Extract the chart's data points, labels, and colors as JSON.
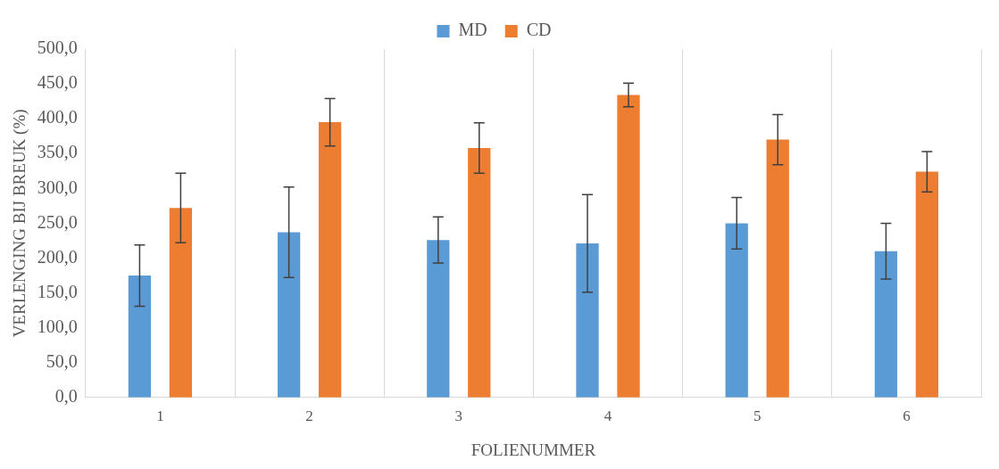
{
  "chart_data": {
    "type": "bar",
    "xlabel": "FOLIENUMMER",
    "ylabel": "VERLENGING BIJ BREUK (%)",
    "categories": [
      "1",
      "2",
      "3",
      "4",
      "5",
      "6"
    ],
    "series": [
      {
        "name": "MD",
        "color": "#5b9bd5",
        "values": [
          175,
          237,
          226,
          221,
          250,
          210
        ],
        "errors": [
          44,
          65,
          33,
          70,
          37,
          40
        ]
      },
      {
        "name": "CD",
        "color": "#ed7d31",
        "values": [
          272,
          395,
          358,
          434,
          370,
          324
        ],
        "errors": [
          50,
          34,
          36,
          17,
          36,
          29
        ]
      }
    ],
    "ylim": [
      0,
      500
    ],
    "yticks": [
      {
        "value": 0,
        "label": "0,0"
      },
      {
        "value": 50,
        "label": "50,0"
      },
      {
        "value": 100,
        "label": "100,0"
      },
      {
        "value": 150,
        "label": "150,0"
      },
      {
        "value": 200,
        "label": "200,0"
      },
      {
        "value": 250,
        "label": "250,0"
      },
      {
        "value": 300,
        "label": "300,0"
      },
      {
        "value": 350,
        "label": "350,0"
      },
      {
        "value": 400,
        "label": "400,0"
      },
      {
        "value": 450,
        "label": "450,0"
      },
      {
        "value": 500,
        "label": "500,0"
      }
    ],
    "grid": "x",
    "legend": "top"
  }
}
